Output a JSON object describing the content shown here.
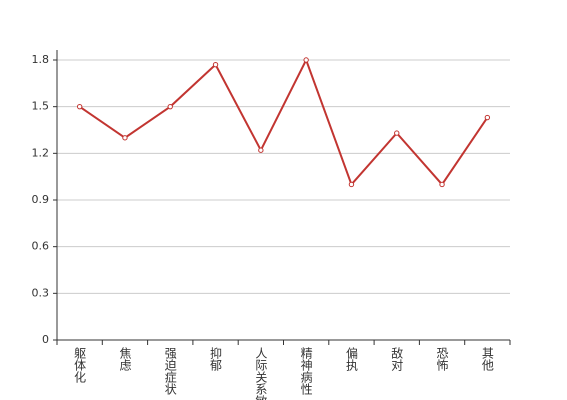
{
  "chart_data": {
    "type": "line",
    "categories": [
      "躯体化",
      "焦虑",
      "强迫症状",
      "抑郁",
      "人际关系敏感",
      "精神病性",
      "偏执",
      "敌对",
      "恐怖",
      "其他"
    ],
    "series": [
      {
        "color": "#c23531",
        "values": [
          1.5,
          1.3,
          1.5,
          1.77,
          1.22,
          1.8,
          1.0,
          1.33,
          1.0,
          1.43
        ]
      }
    ],
    "ylim": [
      0,
      1.8
    ],
    "yticks": [
      0,
      0.3,
      0.6,
      0.9,
      1.2,
      1.5,
      1.8
    ],
    "grid": true
  }
}
